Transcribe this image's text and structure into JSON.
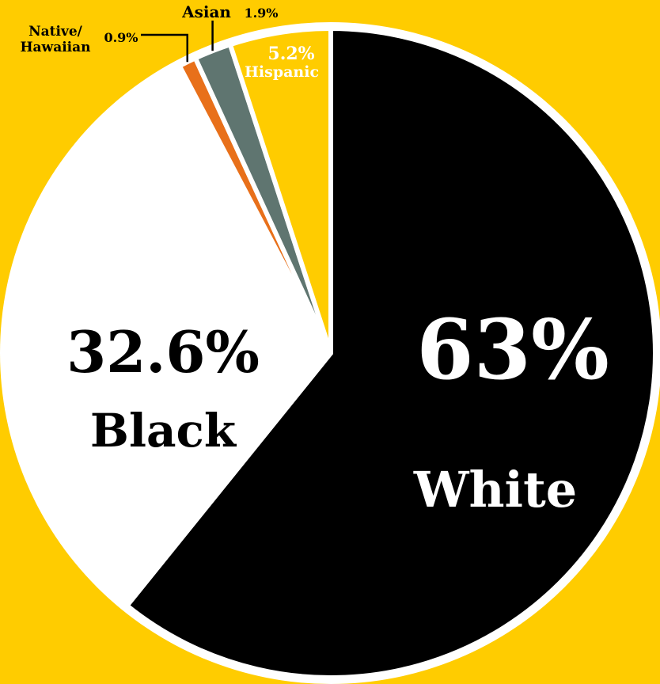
{
  "colors": {
    "background": "#FFCC00",
    "outline": "#FFFFFF"
  },
  "chart_data": {
    "type": "pie",
    "start": "12 o'clock",
    "direction": "clockwise",
    "slices": [
      {
        "label": "White",
        "value_label": "63%",
        "value": 63.0,
        "color": "#000000"
      },
      {
        "label": "Black",
        "value_label": "32.6%",
        "value": 32.6,
        "color": "#FFFFFF"
      },
      {
        "label": "Native/ Hawaiian",
        "value_label": "0.9%",
        "value": 0.9,
        "color": "#E8701A"
      },
      {
        "label": "Asian",
        "value_label": "1.9%",
        "value": 1.9,
        "color": "#5F7570"
      },
      {
        "label": "Hispanic",
        "value_label": "5.2%",
        "value": 5.2,
        "color": "#FFCC00"
      }
    ],
    "labels": {
      "white_pct": "63%",
      "white_name": "White",
      "black_pct": "32.6%",
      "black_name": "Black",
      "native_line1": "Native/",
      "native_line2": "Hawaiian",
      "native_pct": "0.9%",
      "asian_name": "Asian",
      "asian_pct": "1.9%",
      "hispanic_pct": "5.2%",
      "hispanic_name": "Hispanic"
    }
  }
}
